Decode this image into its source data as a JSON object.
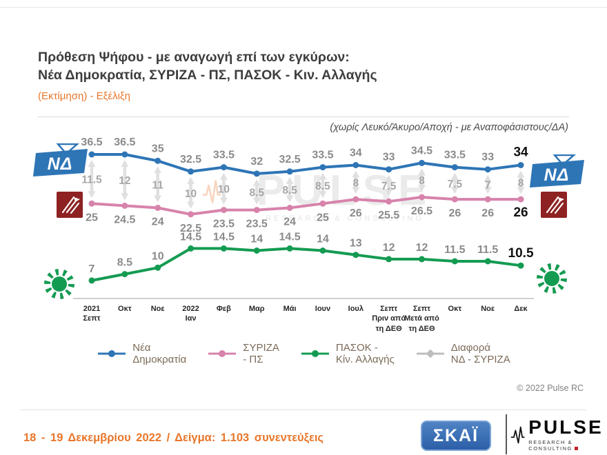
{
  "header": {
    "title_line1": "Πρόθεση Ψήφου - με αναγωγή επί των εγκύρων:",
    "title_line2": "Νέα Δημοκρατία, ΣΥΡΙΖΑ - ΠΣ, ΠΑΣΟΚ - Κιν. Αλλαγής",
    "subtitle": "(Εκτίμηση) - Εξέλιξη",
    "note": "(χωρίς Λευκό/Άκυρο/Αποχή - με Αναποφάσιστους/ΔΑ)"
  },
  "chart_data": {
    "type": "line",
    "title": "Πρόθεση Ψήφου - με αναγωγή επί των εγκύρων: Νέα Δημοκρατία, ΣΥΡΙΖΑ - ΠΣ, ΠΑΣΟΚ - Κιν. Αλλαγής",
    "categories": [
      [
        "2021",
        "Σεπτ"
      ],
      [
        "Οκτ"
      ],
      [
        "Νοε"
      ],
      [
        "2022",
        "Ιαν"
      ],
      [
        "Φεβ"
      ],
      [
        "Μαρ"
      ],
      [
        "Μάι"
      ],
      [
        "Ιουν"
      ],
      [
        "Ιουλ"
      ],
      [
        "Σεπτ",
        "Πριν από",
        "τη ΔΕΘ"
      ],
      [
        "Σεπτ",
        "Μετά από",
        "τη ΔΕΘ"
      ],
      [
        "Οκτ"
      ],
      [
        "Νοε"
      ],
      [
        "Δεκ"
      ]
    ],
    "series": [
      {
        "name": "Νέα Δημοκρατία",
        "color": "#2e75b6",
        "values": [
          36.5,
          36.5,
          35,
          32.5,
          33.5,
          32,
          32.5,
          33.5,
          34,
          33,
          34.5,
          33.5,
          33,
          34
        ]
      },
      {
        "name": "ΣΥΡΙΖΑ - ΠΣ",
        "color": "#d783ab",
        "values": [
          25,
          24.5,
          24,
          22.5,
          23.5,
          23.5,
          24,
          25,
          26,
          25.5,
          26.5,
          26,
          26,
          26
        ]
      },
      {
        "name": "ΠΑΣΟΚ - Κίν. Αλλαγής",
        "color": "#149b52",
        "values": [
          7,
          8.5,
          10,
          14.5,
          14.5,
          14,
          14.5,
          14,
          13,
          12,
          12,
          11.5,
          11.5,
          10.5
        ]
      },
      {
        "name": "Διαφορά ΝΔ - ΣΥΡΙΖΑ",
        "color": "#c7c7c7",
        "type": "difference",
        "values": [
          11.5,
          12,
          11,
          10,
          10,
          8.5,
          8.5,
          8.5,
          8,
          7.5,
          8,
          7.5,
          7,
          8
        ]
      }
    ],
    "ylim": [
      5,
      38
    ],
    "grid": false,
    "legend_position": "bottom"
  },
  "legend": {
    "items": [
      {
        "label_lines": [
          "Νέα",
          "Δημοκρατία"
        ],
        "color": "#2e75b6",
        "marker": "circle"
      },
      {
        "label_lines": [
          "ΣΥΡΙΖΑ",
          "- ΠΣ"
        ],
        "color": "#d783ab",
        "marker": "circle"
      },
      {
        "label_lines": [
          "ΠΑΣΟΚ -",
          "Κίν. Αλλαγής"
        ],
        "color": "#149b52",
        "marker": "circle"
      },
      {
        "label_lines": [
          "Διαφορά",
          "ΝΔ - ΣΥΡΙΖΑ"
        ],
        "color": "#bdbdbd",
        "marker": "diamond"
      }
    ]
  },
  "watermark": {
    "text": "PULSE",
    "subtext": "RESEARCH & CONSULTING"
  },
  "party_logos": {
    "nd_text": "ΝΔ"
  },
  "footer": {
    "survey_info": "18 - 19  Δεκεμβρίου  2022  /  Δείγμα:  1.103 συνεντεύξεις",
    "copyright": "© 2022 Pulse RC",
    "skai_logo_text": "ΣΚΑΪ",
    "pulse_logo_text": "PULSE",
    "pulse_logo_subtext": "RESEARCH & CONSULTING"
  }
}
